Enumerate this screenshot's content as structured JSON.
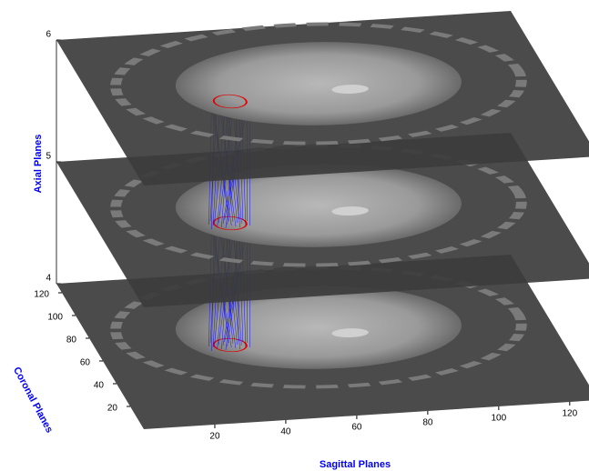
{
  "chart_data": {
    "type": "slices3d",
    "x_label": "Sagittal Planes",
    "y_label": "Coronal Planes",
    "z_label": "Axial Planes",
    "xlim": [
      0,
      128
    ],
    "ylim": [
      0,
      128
    ],
    "zlim": [
      4,
      6
    ],
    "xticks": [
      20,
      40,
      60,
      80,
      100,
      120
    ],
    "yticks": [
      20,
      40,
      60,
      80,
      100,
      120
    ],
    "zticks": [
      4,
      5,
      6
    ],
    "planes": [
      4,
      5,
      6
    ],
    "color": "#0000ff"
  }
}
